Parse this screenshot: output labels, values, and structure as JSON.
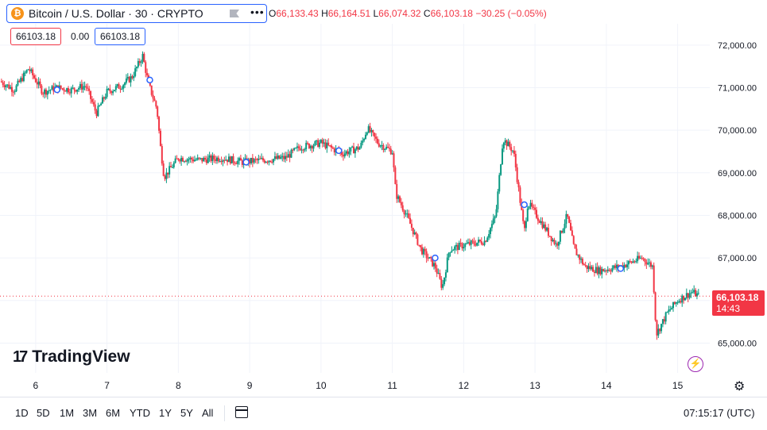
{
  "header": {
    "symbol": "Bitcoin / U.S. Dollar · 30 · CRYPTO",
    "logo_glyph": "₿",
    "ohlc": {
      "open_label": "O",
      "open": "66,133.43",
      "high_label": "H",
      "high": "66,164.51",
      "low_label": "L",
      "low": "66,074.32",
      "close_label": "C",
      "close": "66,103.18",
      "change": "−30.25 (−0.05%)"
    },
    "sell_price": "66103.18",
    "spread": "0.00",
    "buy_price": "66103.18"
  },
  "last_price": {
    "value": "66,103.18",
    "countdown": "14:43"
  },
  "brand": {
    "mark": "17",
    "name": "TradingView"
  },
  "bottom_bar": {
    "ranges": [
      "1D",
      "5D",
      "1M",
      "3M",
      "6M",
      "YTD",
      "1Y",
      "5Y",
      "All"
    ],
    "time": "07:15:17 (UTC)"
  },
  "colors": {
    "up": "#089981",
    "down": "#f23645",
    "accent": "#2962ff",
    "flash": "#9c27b0"
  },
  "icons": {
    "flag": "flag-icon",
    "more": "more-icon",
    "flash": "flash-icon",
    "settings": "gear-icon",
    "calendar": "calendar-icon"
  },
  "chart_data": {
    "type": "candlestick",
    "x_tick_labels": [
      "6",
      "7",
      "8",
      "9",
      "10",
      "11",
      "12",
      "13",
      "14",
      "15"
    ],
    "x_range_days": [
      5.5,
      15.45
    ],
    "y_tick_values": [
      65000,
      66000,
      67000,
      68000,
      69000,
      70000,
      71000,
      72000
    ],
    "y_tick_labels": [
      "65,000.00",
      "66,000.00",
      "67,000.00",
      "68,000.00",
      "69,000.00",
      "70,000.00",
      "71,000.00",
      "72,000.00"
    ],
    "ylim": [
      64300,
      72500
    ],
    "last_price": 66103.18,
    "grid": true,
    "close_path": [
      [
        5.5,
        71150
      ],
      [
        5.7,
        70950
      ],
      [
        5.9,
        71450
      ],
      [
        6.1,
        70900
      ],
      [
        6.3,
        71000
      ],
      [
        6.5,
        70950
      ],
      [
        6.7,
        71050
      ],
      [
        6.85,
        70400
      ],
      [
        7.0,
        70900
      ],
      [
        7.2,
        71050
      ],
      [
        7.35,
        71250
      ],
      [
        7.5,
        71750
      ],
      [
        7.58,
        71100
      ],
      [
        7.7,
        70500
      ],
      [
        7.75,
        69600
      ],
      [
        7.8,
        68900
      ],
      [
        8.0,
        69350
      ],
      [
        8.3,
        69300
      ],
      [
        8.6,
        69350
      ],
      [
        8.9,
        69250
      ],
      [
        9.2,
        69300
      ],
      [
        9.5,
        69350
      ],
      [
        9.7,
        69600
      ],
      [
        10.0,
        69700
      ],
      [
        10.3,
        69450
      ],
      [
        10.55,
        69600
      ],
      [
        10.65,
        70050
      ],
      [
        10.8,
        69700
      ],
      [
        11.0,
        69500
      ],
      [
        11.05,
        68500
      ],
      [
        11.2,
        68000
      ],
      [
        11.4,
        67200
      ],
      [
        11.6,
        66800
      ],
      [
        11.7,
        66300
      ],
      [
        11.8,
        67200
      ],
      [
        12.0,
        67300
      ],
      [
        12.3,
        67400
      ],
      [
        12.45,
        68000
      ],
      [
        12.55,
        69800
      ],
      [
        12.7,
        69500
      ],
      [
        12.85,
        67600
      ],
      [
        12.9,
        68300
      ],
      [
        13.1,
        67800
      ],
      [
        13.3,
        67300
      ],
      [
        13.45,
        68000
      ],
      [
        13.55,
        67200
      ],
      [
        13.7,
        66800
      ],
      [
        13.9,
        66700
      ],
      [
        14.2,
        66800
      ],
      [
        14.5,
        67000
      ],
      [
        14.65,
        66800
      ],
      [
        14.7,
        65200
      ],
      [
        14.85,
        65700
      ],
      [
        15.0,
        66000
      ],
      [
        15.2,
        66200
      ],
      [
        15.3,
        66103.18
      ]
    ],
    "markers": [
      [
        6.3,
        70950
      ],
      [
        7.6,
        71180
      ],
      [
        8.95,
        69250
      ],
      [
        10.25,
        69520
      ],
      [
        11.6,
        67000
      ],
      [
        12.85,
        68250
      ],
      [
        14.2,
        66750
      ]
    ]
  }
}
